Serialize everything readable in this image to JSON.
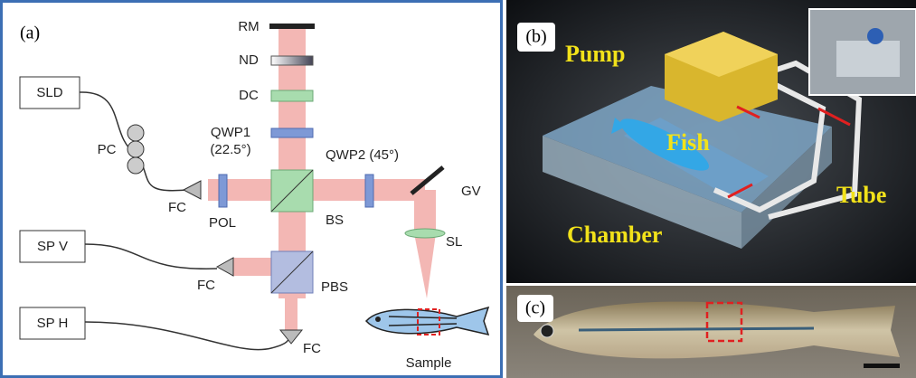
{
  "panel_a": {
    "label": "(a)",
    "components": {
      "rm": "RM",
      "nd": "ND",
      "dc": "DC",
      "qwp1": "QWP1",
      "qwp1_angle": "(22.5°)",
      "qwp2": "QWP2 (45°)",
      "gv": "GV",
      "sld": "SLD",
      "pc": "PC",
      "fc_1": "FC",
      "pol": "POL",
      "bs": "BS",
      "sp_v": "SP V",
      "fc_2": "FC",
      "pbs": "PBS",
      "sl": "SL",
      "sp_h": "SP H",
      "fc_3": "FC",
      "sample": "Sample"
    }
  },
  "panel_b": {
    "label": "(b)",
    "pump": "Pump",
    "fish": "Fish",
    "tube": "Tube",
    "chamber": "Chamber"
  },
  "panel_c": {
    "label": "(c)"
  }
}
